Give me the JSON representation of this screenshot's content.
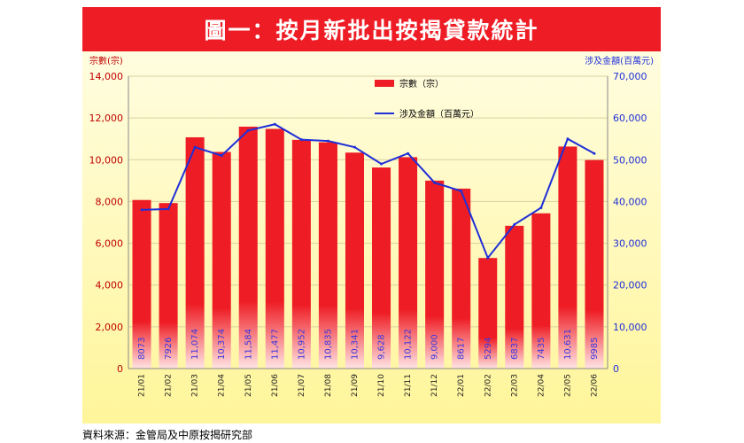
{
  "title": "圖一：按月新批出按揭貸款統計",
  "source": "資料來源：金管局及中原按揭研究部",
  "colors": {
    "title_bg": "#ee1c24",
    "bar": "#ee1c24",
    "line": "#1f2fd8",
    "plot_bg_top": "#fffde0",
    "plot_bg_bottom": "#fff59a",
    "left_axis_text": "#c00000",
    "right_axis_text": "#1f2fd8"
  },
  "chart_data": {
    "type": "bar",
    "categories": [
      "21/01",
      "21/02",
      "21/03",
      "21/04",
      "21/05",
      "21/06",
      "21/07",
      "21/08",
      "21/09",
      "21/10",
      "21/11",
      "21/12",
      "22/01",
      "22/02",
      "22/03",
      "22/04",
      "22/05",
      "22/06"
    ],
    "series": [
      {
        "name": "宗數（宗）",
        "axis": "left",
        "type": "bar",
        "values": [
          8073,
          7926,
          11074,
          10374,
          11584,
          11477,
          10952,
          10835,
          10341,
          9628,
          10122,
          9000,
          8617,
          5294,
          6837,
          7435,
          10631,
          9985
        ],
        "labels": [
          "8073",
          "7926",
          "11,074",
          "10,374",
          "11,584",
          "11,477",
          "10,952",
          "10,835",
          "10,341",
          "9,628",
          "10,122",
          "9,000",
          "8617",
          "5294",
          "6837",
          "7435",
          "10,631",
          "9985"
        ]
      },
      {
        "name": "涉及金額（百萬元）",
        "axis": "right",
        "type": "line",
        "values": [
          38000,
          38200,
          53000,
          51000,
          57000,
          58500,
          54800,
          54500,
          53000,
          49000,
          51500,
          44500,
          42500,
          26500,
          34500,
          38500,
          55000,
          51500
        ]
      }
    ],
    "y_left": {
      "label": "宗數(宗)",
      "min": 0,
      "max": 14000,
      "ticks": [
        "0",
        "2,000",
        "4,000",
        "6,000",
        "8,000",
        "10,000",
        "12,000",
        "14,000"
      ]
    },
    "y_right": {
      "label": "涉及金額(百萬元)",
      "min": 0,
      "max": 70000,
      "ticks": [
        "0",
        "10,000",
        "20,000",
        "30,000",
        "40,000",
        "50,000",
        "60,000",
        "70,000"
      ]
    },
    "legend_position": "top-center",
    "grid": true
  }
}
